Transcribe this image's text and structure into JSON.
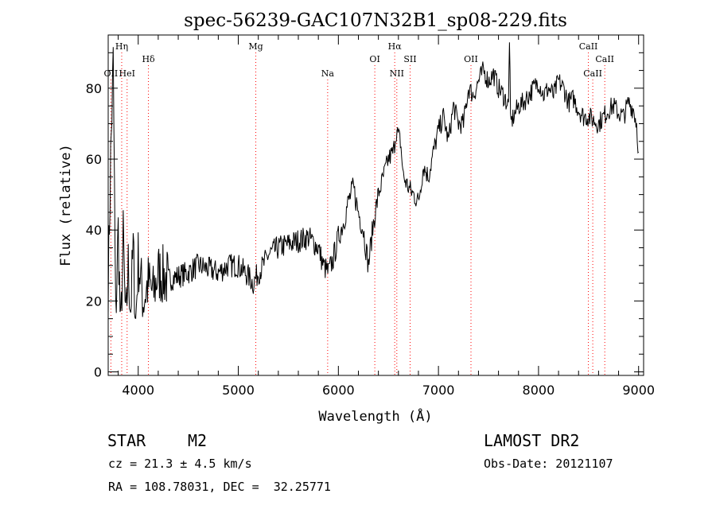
{
  "chart_data": {
    "type": "line",
    "title": "spec-56239-GAC107N32B1_sp08-229.fits",
    "xlabel": "Wavelength (Å)",
    "ylabel": "Flux (relative)",
    "xlim": [
      3700,
      9050
    ],
    "ylim": [
      -1,
      95
    ],
    "x_ticks": [
      4000,
      5000,
      6000,
      7000,
      8000,
      9000
    ],
    "y_ticks": [
      0,
      20,
      40,
      60,
      80
    ],
    "grid": false,
    "line_color": "#000000",
    "marker_line_color": "#ff0000",
    "series": [
      {
        "x": [
          3700,
          3725,
          3750,
          3775,
          3800,
          3825,
          3850,
          3875,
          3900,
          3925,
          3950,
          3975,
          4000,
          4050,
          4100,
          4150,
          4200,
          4300,
          4400,
          4500,
          4600,
          4700,
          4800,
          4900,
          5000,
          5100,
          5150,
          5200,
          5250,
          5300,
          5400,
          5500,
          5600,
          5700,
          5800,
          5850,
          5900,
          5950,
          6000,
          6050,
          6100,
          6150,
          6200,
          6250,
          6300,
          6350,
          6400,
          6450,
          6500,
          6550,
          6580,
          6620,
          6650,
          6700,
          6750,
          6800,
          6850,
          6900,
          6950,
          7000,
          7050,
          7100,
          7150,
          7200,
          7250,
          7300,
          7350,
          7400,
          7450,
          7500,
          7550,
          7600,
          7650,
          7700,
          7710,
          7720,
          7750,
          7800,
          7850,
          7900,
          7950,
          8000,
          8050,
          8100,
          8150,
          8200,
          8250,
          8300,
          8350,
          8400,
          8450,
          8500,
          8550,
          8600,
          8650,
          8700,
          8750,
          8800,
          8850,
          8900,
          8950,
          8980,
          9000
        ],
        "y": [
          25,
          60,
          87,
          15,
          40,
          10,
          38,
          12,
          30,
          18,
          35,
          14,
          32,
          20,
          25,
          22,
          28,
          26,
          27,
          28,
          30,
          29,
          28,
          30,
          30,
          27,
          25,
          28,
          30,
          33,
          35,
          36,
          37,
          38,
          35,
          30,
          28,
          32,
          38,
          42,
          48,
          52,
          45,
          40,
          30,
          42,
          50,
          55,
          60,
          62,
          68,
          65,
          55,
          52,
          50,
          48,
          58,
          55,
          62,
          68,
          72,
          65,
          75,
          70,
          70,
          80,
          78,
          82,
          85,
          82,
          84,
          80,
          78,
          75,
          95,
          70,
          72,
          75,
          76,
          78,
          80,
          82,
          78,
          80,
          78,
          82,
          80,
          76,
          77,
          74,
          72,
          72,
          71,
          70,
          72,
          74,
          75,
          73,
          72,
          76,
          74,
          70,
          62
        ]
      }
    ],
    "line_markers": [
      {
        "label": "OII",
        "x": 3727,
        "row": 3
      },
      {
        "label": "Hη",
        "x": 3835,
        "row": 1
      },
      {
        "label": "HeI",
        "x": 3889,
        "row": 3
      },
      {
        "label": "Hδ",
        "x": 4102,
        "row": 2
      },
      {
        "label": "Mg",
        "x": 5175,
        "row": 1
      },
      {
        "label": "Na",
        "x": 5893,
        "row": 3
      },
      {
        "label": "OI",
        "x": 6364,
        "row": 2
      },
      {
        "label": "Hα",
        "x": 6563,
        "row": 1
      },
      {
        "label": "NII",
        "x": 6584,
        "row": 3
      },
      {
        "label": "SII",
        "x": 6717,
        "row": 2
      },
      {
        "label": "OII",
        "x": 7325,
        "row": 2
      },
      {
        "label": "CaII",
        "x": 8498,
        "row": 1
      },
      {
        "label": "CaII",
        "x": 8542,
        "row": 3
      },
      {
        "label": "CaII",
        "x": 8662,
        "row": 2
      }
    ]
  },
  "footer": {
    "object_class": "STAR",
    "subclass": "M2",
    "survey": "LAMOST DR2",
    "cz": "cz = 21.3 ± 4.5 km/s",
    "obs_date": "Obs-Date: 20121107",
    "coords": "RA = 108.78031, DEC =  32.25771"
  }
}
